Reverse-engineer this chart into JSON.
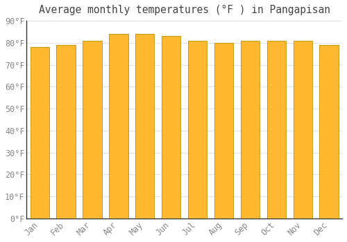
{
  "title": "Average monthly temperatures (°F ) in Pangapisan",
  "months": [
    "Jan",
    "Feb",
    "Mar",
    "Apr",
    "May",
    "Jun",
    "Jul",
    "Aug",
    "Sep",
    "Oct",
    "Nov",
    "Dec"
  ],
  "values": [
    78,
    79,
    81,
    84,
    84,
    83,
    81,
    80,
    81,
    81,
    81,
    79
  ],
  "bar_color_center": "#FFB830",
  "bar_color_edge": "#F5A000",
  "background_color": "#FFFFFF",
  "plot_bg_color": "#FFFFFF",
  "grid_color": "#E0E0E8",
  "title_color": "#444444",
  "label_color": "#888888",
  "axis_line_color": "#333333",
  "ylim": [
    0,
    90
  ],
  "yticks": [
    0,
    10,
    20,
    30,
    40,
    50,
    60,
    70,
    80,
    90
  ],
  "ytick_labels": [
    "0°F",
    "10°F",
    "20°F",
    "30°F",
    "40°F",
    "50°F",
    "60°F",
    "70°F",
    "80°F",
    "90°F"
  ],
  "font_family": "monospace",
  "title_fontsize": 10.5,
  "tick_fontsize": 8.5,
  "bar_edge_color": "#C8960A",
  "bar_linewidth": 0.5
}
